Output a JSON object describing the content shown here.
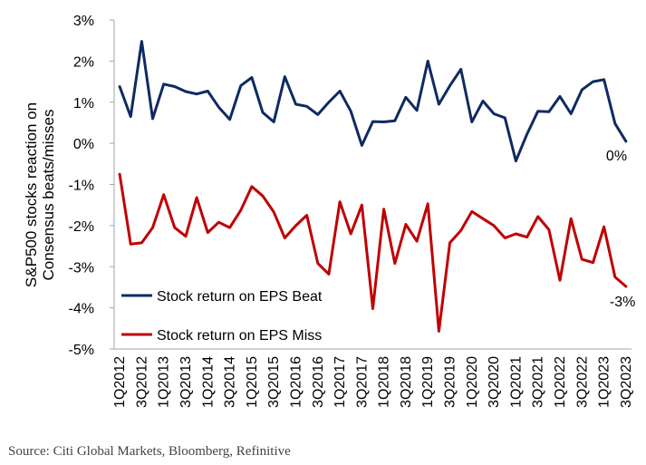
{
  "chart_data": {
    "type": "line",
    "ylabel_lines": [
      "S&P500 stocks reaction on",
      "Consensus beats/misses"
    ],
    "xlabel": "",
    "ylim": [
      -5,
      3
    ],
    "yticks": [
      3,
      2,
      1,
      0,
      -1,
      -2,
      -3,
      -4,
      -5
    ],
    "ytick_labels": [
      "3%",
      "2%",
      "1%",
      "0%",
      "-1%",
      "-2%",
      "-3%",
      "-4%",
      "-5%"
    ],
    "x": [
      "1Q2012",
      "2Q2012",
      "3Q2012",
      "4Q2012",
      "1Q2013",
      "2Q2013",
      "3Q2013",
      "4Q2013",
      "1Q2014",
      "2Q2014",
      "3Q2014",
      "4Q2014",
      "1Q2015",
      "2Q2015",
      "3Q2015",
      "4Q2015",
      "1Q2016",
      "2Q2016",
      "3Q2016",
      "4Q2016",
      "1Q2017",
      "2Q2017",
      "3Q2017",
      "4Q2017",
      "1Q2018",
      "2Q2018",
      "3Q2018",
      "4Q2018",
      "1Q2019",
      "2Q2019",
      "3Q2019",
      "4Q2019",
      "1Q2020",
      "2Q2020",
      "3Q2020",
      "4Q2020",
      "1Q2021",
      "2Q2021",
      "3Q2021",
      "4Q2021",
      "1Q2022",
      "2Q2022",
      "3Q2022",
      "4Q2022",
      "1Q2023",
      "2Q2023",
      "3Q2023"
    ],
    "x_tick_labels": [
      "1Q2012",
      "3Q2012",
      "1Q2013",
      "3Q2013",
      "1Q2014",
      "3Q2014",
      "1Q2015",
      "3Q2015",
      "1Q2016",
      "3Q2016",
      "1Q2017",
      "3Q2017",
      "1Q2018",
      "3Q2018",
      "1Q2019",
      "3Q2019",
      "1Q2020",
      "3Q2020",
      "1Q2021",
      "3Q2021",
      "1Q2022",
      "3Q2022",
      "1Q2023",
      "3Q2023"
    ],
    "series": [
      {
        "name": "Stock return on EPS Beat",
        "color": "#0f2a63",
        "values": [
          1.38,
          0.65,
          2.48,
          0.6,
          1.44,
          1.38,
          1.26,
          1.2,
          1.27,
          0.88,
          0.58,
          1.4,
          1.6,
          0.75,
          0.52,
          1.62,
          0.95,
          0.9,
          0.7,
          1.0,
          1.27,
          0.78,
          -0.05,
          0.53,
          0.52,
          0.55,
          1.12,
          0.8,
          2.0,
          0.95,
          1.4,
          1.8,
          0.52,
          1.03,
          0.72,
          0.62,
          -0.43,
          0.22,
          0.78,
          0.77,
          1.14,
          0.72,
          1.3,
          1.5,
          1.55,
          0.48,
          0.05
        ]
      },
      {
        "name": "Stock return on EPS Miss",
        "color": "#c00000",
        "values": [
          -0.75,
          -2.45,
          -2.42,
          -2.05,
          -1.25,
          -2.05,
          -2.26,
          -1.32,
          -2.17,
          -1.92,
          -2.05,
          -1.63,
          -1.05,
          -1.28,
          -1.67,
          -2.3,
          -2.0,
          -1.75,
          -2.92,
          -3.18,
          -1.42,
          -2.2,
          -1.5,
          -4.02,
          -1.6,
          -2.92,
          -1.97,
          -2.38,
          -1.47,
          -4.57,
          -2.42,
          -2.12,
          -1.66,
          -1.83,
          -2.0,
          -2.3,
          -2.2,
          -2.28,
          -1.78,
          -2.1,
          -3.33,
          -1.83,
          -2.82,
          -2.9,
          -2.03,
          -3.25,
          -3.48
        ]
      }
    ],
    "end_labels": [
      "0%",
      "-3%"
    ],
    "legend": {
      "placement": "bottom-left"
    },
    "grid": false
  },
  "source": "Source: Citi Global Markets, Bloomberg, Refinitive"
}
